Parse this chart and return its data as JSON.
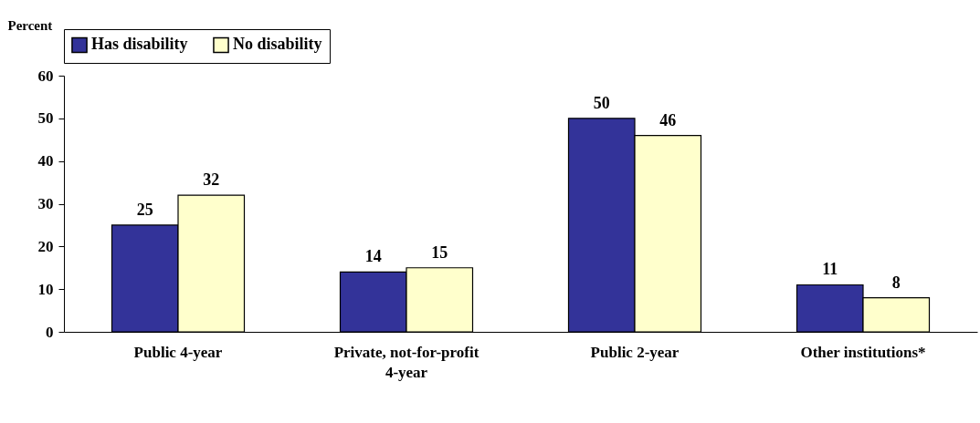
{
  "chart_data": {
    "type": "bar",
    "ylabel": "Percent",
    "categories": [
      "Public 4-year",
      "Private, not-for-profit 4-year",
      "Public 2-year",
      "Other institutions*"
    ],
    "series": [
      {
        "name": "Has disability",
        "color": "#333399",
        "values": [
          25,
          14,
          50,
          11
        ]
      },
      {
        "name": "No disability",
        "color": "#ffffcc",
        "values": [
          32,
          15,
          46,
          8
        ]
      }
    ],
    "ylim": [
      0,
      60
    ],
    "yticks": [
      0,
      10,
      20,
      30,
      40,
      50,
      60
    ],
    "grid": false,
    "legend": "top",
    "data_labels": true
  }
}
